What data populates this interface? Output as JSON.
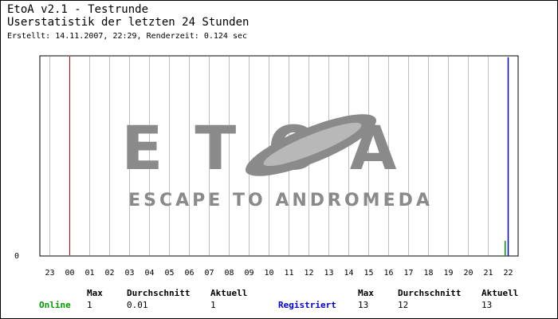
{
  "header": {
    "title": "EtoA v2.1 - Testrunde",
    "subtitle": "Userstatistik der letzten 24 Stunden",
    "meta": "Erstellt: 14.11.2007, 22:29, Renderzeit: 0.124 sec"
  },
  "logo": {
    "text_main": "ETOA",
    "text_sub": "ESCAPE TO ANDROMEDA"
  },
  "colors": {
    "online": "#009900",
    "registered": "#0000cc",
    "grid": "#c0c0c0",
    "marker": "#cc0000",
    "logo": "#808080"
  },
  "chart_data": {
    "type": "line",
    "title": "Userstatistik der letzten 24 Stunden",
    "categories": [
      "23",
      "00",
      "01",
      "02",
      "03",
      "04",
      "05",
      "06",
      "07",
      "08",
      "09",
      "10",
      "11",
      "12",
      "13",
      "14",
      "15",
      "16",
      "17",
      "18",
      "19",
      "20",
      "21",
      "22"
    ],
    "y_tick_labels": [
      "0"
    ],
    "ylim": [
      0,
      13
    ],
    "grid": true,
    "highlight_category": "00",
    "series": [
      {
        "name": "Online",
        "color": "#009900",
        "points": [
          {
            "x": 23.35,
            "y": 0
          },
          {
            "x": 23.35,
            "y": 1
          }
        ]
      },
      {
        "name": "Registriert",
        "color": "#0000cc",
        "points": [
          {
            "x": 23.5,
            "y": 0
          },
          {
            "x": 23.5,
            "y": 13
          }
        ]
      }
    ]
  },
  "stats": {
    "headers": {
      "max": "Max",
      "avg": "Durchschnitt",
      "current": "Aktuell"
    },
    "online": {
      "label": "Online",
      "max": "1",
      "avg": "0.01",
      "current": "1"
    },
    "registered": {
      "label": "Registriert",
      "max": "13",
      "avg": "12",
      "current": "13"
    }
  }
}
